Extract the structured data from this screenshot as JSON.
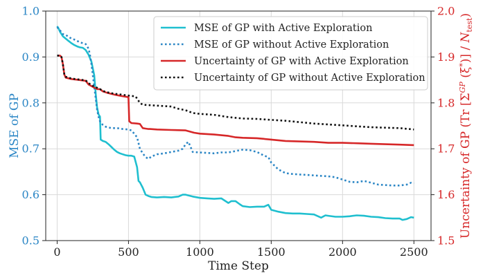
{
  "chart_data": {
    "type": "line",
    "xlabel": "Time Step",
    "ylabel_left": "MSE of GP",
    "ylabel_right": "Uncertainty of GP (Tr [Σ^GP (ξ*)] / N_test)",
    "ylabel_right_parts": {
      "pre": "Uncertainty of GP (Tr ",
      "bracket_open": "[",
      "sigma": "Σ",
      "sup": "GP",
      "arg": " (ξ",
      "star": "*",
      "arg_close": ")",
      "bracket_close": "]",
      "slash": " / ",
      "n": "N",
      "sub": "test",
      "post": ")"
    },
    "xlim": [
      -80,
      2620
    ],
    "xticks": [
      0,
      500,
      1000,
      1500,
      2000,
      2500
    ],
    "xtick_labels": [
      "0",
      "500",
      "1000",
      "1500",
      "2000",
      "2500"
    ],
    "ylim_left": [
      0.5,
      1.0
    ],
    "yticks_left": [
      0.5,
      0.6,
      0.7,
      0.8,
      0.9,
      1.0
    ],
    "ytick_labels_left": [
      "0.5",
      "0.6",
      "0.7",
      "0.8",
      "0.9",
      "1.0"
    ],
    "ylim_right": [
      1.5,
      2.0
    ],
    "yticks_right": [
      1.5,
      1.6,
      1.7,
      1.8,
      1.9,
      2.0
    ],
    "ytick_labels_right": [
      "1.5",
      "1.6",
      "1.7",
      "1.8",
      "1.9",
      "2.0"
    ],
    "left_color": "#2b86c5",
    "right_color": "#d62728",
    "legend_position": "upper-right",
    "grid": true,
    "series": [
      {
        "name": "MSE of GP with Active Exploration",
        "axis": "left",
        "color": "#1fbfcf",
        "style": "solid",
        "x": [
          0,
          10,
          20,
          30,
          40,
          60,
          80,
          100,
          120,
          140,
          160,
          180,
          200,
          220,
          240,
          260,
          270,
          280,
          290,
          300,
          305,
          320,
          340,
          360,
          380,
          400,
          420,
          440,
          460,
          480,
          500,
          520,
          540,
          560,
          570,
          580,
          600,
          620,
          640,
          660,
          700,
          750,
          800,
          850,
          880,
          900,
          950,
          1000,
          1050,
          1100,
          1150,
          1200,
          1220,
          1250,
          1280,
          1300,
          1350,
          1400,
          1450,
          1480,
          1500,
          1550,
          1600,
          1650,
          1700,
          1750,
          1800,
          1850,
          1880,
          1900,
          1950,
          2000,
          2050,
          2100,
          2150,
          2200,
          2250,
          2300,
          2350,
          2400,
          2420,
          2450,
          2480,
          2500
        ],
        "values": [
          0.967,
          0.962,
          0.955,
          0.95,
          0.945,
          0.94,
          0.935,
          0.93,
          0.926,
          0.923,
          0.921,
          0.92,
          0.915,
          0.905,
          0.89,
          0.86,
          0.82,
          0.79,
          0.775,
          0.77,
          0.72,
          0.717,
          0.715,
          0.71,
          0.704,
          0.698,
          0.693,
          0.69,
          0.688,
          0.686,
          0.685,
          0.685,
          0.683,
          0.66,
          0.63,
          0.627,
          0.615,
          0.6,
          0.597,
          0.595,
          0.594,
          0.595,
          0.594,
          0.596,
          0.6,
          0.6,
          0.596,
          0.593,
          0.592,
          0.591,
          0.592,
          0.582,
          0.586,
          0.586,
          0.579,
          0.575,
          0.573,
          0.574,
          0.574,
          0.578,
          0.567,
          0.563,
          0.56,
          0.559,
          0.559,
          0.558,
          0.557,
          0.55,
          0.555,
          0.554,
          0.552,
          0.552,
          0.553,
          0.555,
          0.554,
          0.552,
          0.551,
          0.549,
          0.548,
          0.548,
          0.545,
          0.547,
          0.551,
          0.55
        ]
      },
      {
        "name": "MSE of GP without Active Exploration",
        "axis": "left",
        "color": "#2b86c5",
        "style": "dotted",
        "x": [
          0,
          20,
          40,
          60,
          80,
          100,
          120,
          140,
          160,
          180,
          200,
          220,
          230,
          240,
          250,
          260,
          270,
          280,
          290,
          300,
          320,
          340,
          380,
          420,
          460,
          500,
          520,
          540,
          560,
          580,
          600,
          620,
          640,
          660,
          700,
          750,
          800,
          850,
          880,
          900,
          920,
          950,
          1000,
          1050,
          1100,
          1150,
          1200,
          1250,
          1300,
          1350,
          1400,
          1450,
          1480,
          1500,
          1550,
          1600,
          1650,
          1700,
          1750,
          1800,
          1850,
          1900,
          1950,
          2000,
          2050,
          2100,
          2150,
          2200,
          2250,
          2300,
          2350,
          2400,
          2450,
          2480,
          2500
        ],
        "values": [
          0.965,
          0.958,
          0.95,
          0.948,
          0.944,
          0.94,
          0.938,
          0.935,
          0.932,
          0.93,
          0.928,
          0.918,
          0.905,
          0.885,
          0.86,
          0.835,
          0.81,
          0.785,
          0.77,
          0.76,
          0.752,
          0.748,
          0.745,
          0.745,
          0.743,
          0.742,
          0.74,
          0.733,
          0.725,
          0.7,
          0.69,
          0.682,
          0.678,
          0.683,
          0.688,
          0.69,
          0.693,
          0.696,
          0.7,
          0.71,
          0.715,
          0.693,
          0.692,
          0.691,
          0.69,
          0.692,
          0.692,
          0.695,
          0.698,
          0.697,
          0.693,
          0.685,
          0.682,
          0.67,
          0.655,
          0.647,
          0.645,
          0.644,
          0.643,
          0.642,
          0.641,
          0.64,
          0.638,
          0.633,
          0.628,
          0.627,
          0.63,
          0.626,
          0.622,
          0.621,
          0.62,
          0.62,
          0.622,
          0.626,
          0.625
        ]
      },
      {
        "name": "Uncertainty of GP with Active Exploration",
        "axis": "right",
        "color": "#d62728",
        "style": "solid",
        "x": [
          0,
          20,
          30,
          40,
          50,
          60,
          100,
          150,
          200,
          220,
          250,
          280,
          300,
          320,
          350,
          400,
          450,
          490,
          500,
          505,
          520,
          560,
          580,
          600,
          620,
          640,
          650,
          700,
          800,
          900,
          960,
          1000,
          1100,
          1200,
          1250,
          1300,
          1400,
          1500,
          1600,
          1700,
          1800,
          1900,
          2000,
          2100,
          2200,
          2300,
          2400,
          2500
        ],
        "values": [
          1.903,
          1.903,
          1.9,
          1.885,
          1.862,
          1.855,
          1.852,
          1.85,
          1.848,
          1.84,
          1.835,
          1.83,
          1.83,
          1.825,
          1.822,
          1.818,
          1.815,
          1.813,
          1.812,
          1.76,
          1.756,
          1.755,
          1.754,
          1.745,
          1.744,
          1.743,
          1.743,
          1.742,
          1.741,
          1.74,
          1.735,
          1.733,
          1.731,
          1.728,
          1.725,
          1.724,
          1.723,
          1.72,
          1.717,
          1.716,
          1.715,
          1.713,
          1.713,
          1.712,
          1.711,
          1.71,
          1.709,
          1.708
        ]
      },
      {
        "name": "Uncertainty of GP without Active Exploration",
        "axis": "right",
        "color": "#111111",
        "style": "dotted",
        "x": [
          0,
          20,
          30,
          40,
          50,
          60,
          100,
          150,
          200,
          220,
          250,
          280,
          300,
          320,
          350,
          400,
          450,
          500,
          550,
          580,
          600,
          700,
          800,
          850,
          900,
          950,
          1000,
          1100,
          1200,
          1300,
          1400,
          1500,
          1600,
          1700,
          1800,
          1900,
          2000,
          2100,
          2200,
          2300,
          2400,
          2500
        ],
        "values": [
          1.903,
          1.903,
          1.9,
          1.885,
          1.862,
          1.857,
          1.853,
          1.851,
          1.849,
          1.843,
          1.837,
          1.833,
          1.83,
          1.826,
          1.823,
          1.82,
          1.818,
          1.816,
          1.814,
          1.8,
          1.796,
          1.794,
          1.792,
          1.787,
          1.784,
          1.778,
          1.776,
          1.774,
          1.769,
          1.766,
          1.765,
          1.763,
          1.761,
          1.758,
          1.755,
          1.753,
          1.751,
          1.749,
          1.747,
          1.746,
          1.745,
          1.742
        ]
      }
    ]
  }
}
